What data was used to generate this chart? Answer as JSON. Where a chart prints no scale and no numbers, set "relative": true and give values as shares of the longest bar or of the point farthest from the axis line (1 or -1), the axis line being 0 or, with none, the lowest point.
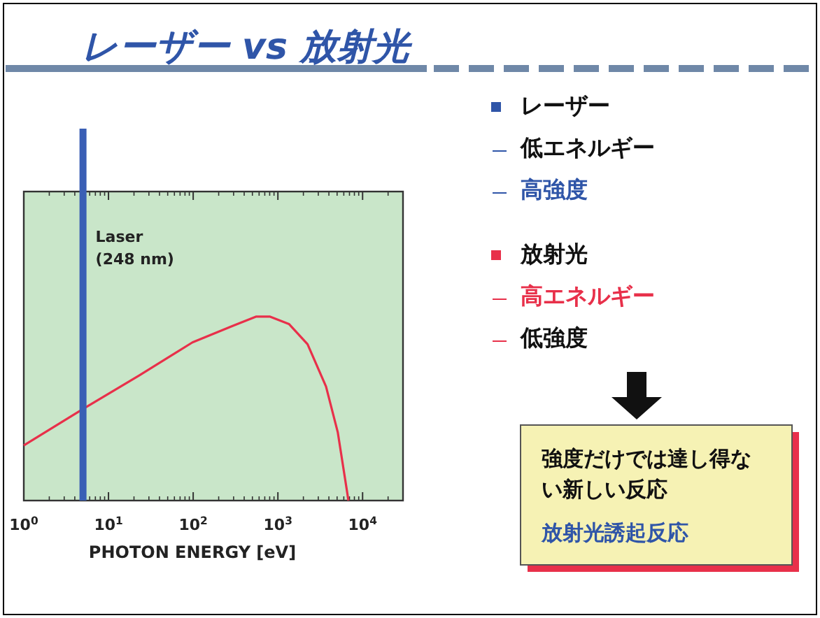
{
  "chart_data": {
    "type": "line",
    "title": "レーザー vs 放射光",
    "xlabel": "PHOTON ENERGY [eV]",
    "log": "x",
    "relative": true,
    "xlim": [
      1,
      30000
    ],
    "xticks": [
      {
        "value": 1,
        "label": "10$^{0}$"
      },
      {
        "value": 10,
        "label": "10$^{1}$"
      },
      {
        "value": 100,
        "label": "10$^{2}$"
      },
      {
        "value": 1000,
        "label": "10$^{3}$"
      },
      {
        "value": 10000,
        "label": "10$^{4}$"
      }
    ],
    "series": [
      {
        "color": "#e8304a",
        "x": [
          1,
          5.1,
          23,
          98,
          295,
          550,
          810,
          1350,
          2240,
          3700,
          5100,
          6600,
          6800
        ],
        "values": [
          0.3,
          0.5,
          0.68,
          0.86,
          0.95,
          1,
          1,
          0.96,
          0.85,
          0.62,
          0.37,
          0.04,
          0
        ]
      }
    ],
    "ref_lines": [
      {
        "axis": "x",
        "value": 5,
        "label": "Laser\n(248 nm)",
        "color": "#3a5fb5"
      }
    ],
    "annotations": [
      "レーザー",
      "低エネルギー",
      "高強度",
      "放射光",
      "高エネルギー",
      "低強度",
      "強度だけでは達し得ない新しい反応",
      "放射光誘起反応"
    ]
  }
}
